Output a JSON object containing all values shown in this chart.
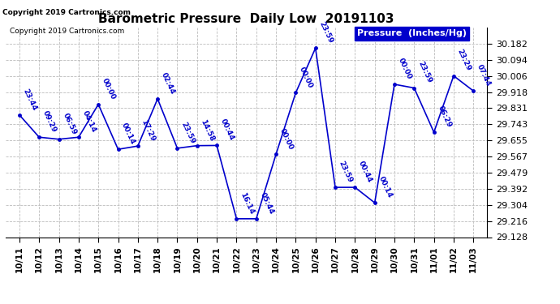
{
  "title": "Barometric Pressure  Daily Low  20191103",
  "copyright": "Copyright 2019 Cartronics.com",
  "legend_label": "Pressure  (Inches/Hg)",
  "x_labels": [
    "10/11",
    "10/12",
    "10/13",
    "10/14",
    "10/15",
    "10/16",
    "10/17",
    "10/18",
    "10/19",
    "10/20",
    "10/21",
    "10/22",
    "10/23",
    "10/24",
    "10/25",
    "10/26",
    "10/27",
    "10/28",
    "10/29",
    "10/30",
    "10/31",
    "11/01",
    "11/02",
    "11/03"
  ],
  "y_values": [
    29.793,
    29.672,
    29.661,
    29.672,
    29.851,
    29.606,
    29.624,
    29.881,
    29.612,
    29.626,
    29.627,
    29.228,
    29.228,
    29.579,
    29.914,
    30.157,
    29.399,
    29.399,
    29.315,
    29.96,
    29.94,
    29.699,
    30.006,
    29.924
  ],
  "point_labels": [
    "23:44",
    "09:29",
    "06:59",
    "04:14",
    "00:00",
    "00:14",
    "17:29",
    "02:44",
    "23:59",
    "14:58",
    "00:44",
    "16:14",
    "05:44",
    "00:00",
    "00:00",
    "23:59",
    "23:59",
    "00:44",
    "00:14",
    "00:00",
    "23:59",
    "06:29",
    "23:29",
    "07:44"
  ],
  "ylim_min": 29.128,
  "ylim_max": 30.27,
  "y_ticks": [
    29.128,
    29.216,
    29.304,
    29.392,
    29.479,
    29.567,
    29.655,
    29.743,
    29.831,
    29.918,
    30.006,
    30.094,
    30.182
  ],
  "line_color": "#0000cc",
  "marker_color": "#0000cc",
  "bg_color": "#ffffff",
  "grid_color": "#bbbbbb",
  "title_color": "#000000",
  "legend_bg": "#0000cc",
  "legend_text_color": "#ffffff"
}
